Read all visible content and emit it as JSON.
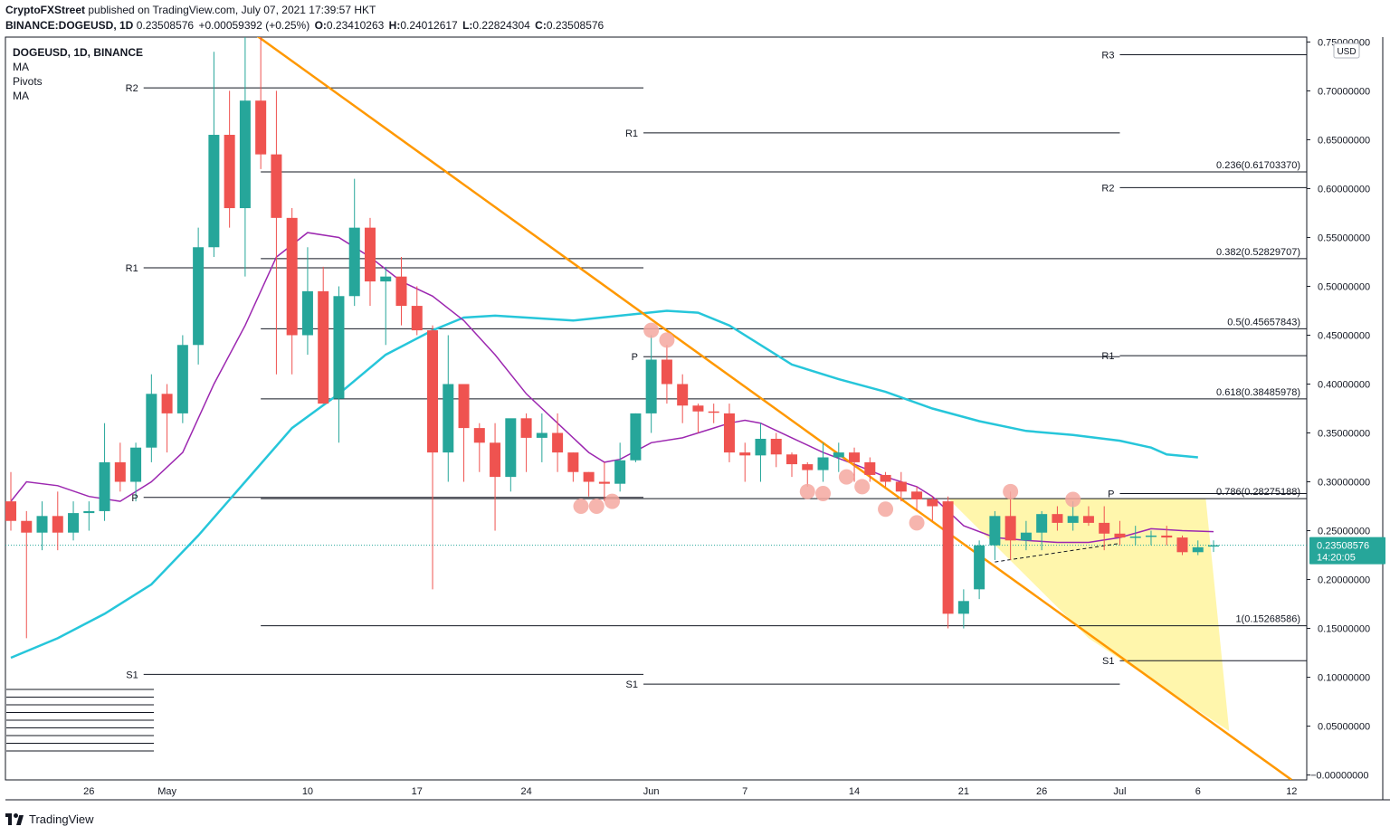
{
  "header": {
    "publisher": "CryptoFXStreet",
    "published_text": "published on TradingView.com, July 07, 2021 17:39:57 HKT",
    "symbol_line": "BINANCE:DOGEUSD, 1D",
    "price": "0.23508576",
    "change": "+0.00059392 (+0.25%)",
    "o_label": "O:",
    "o_value": "0.23410263",
    "h_label": "H:",
    "h_value": "0.24012617",
    "l_label": "L:",
    "l_value": "0.22824304",
    "c_label": "C:",
    "c_value": "0.23508576"
  },
  "legend": {
    "title": "DOGEUSD, 1D, BINANCE",
    "items": [
      "MA",
      "Pivots",
      "MA"
    ]
  },
  "footer": {
    "brand": "TradingView"
  },
  "colors": {
    "up": "#26a69a",
    "down": "#ef5350",
    "ma_fast": "#9c27b0",
    "ma_slow": "#26c6da",
    "trend": "#ff9800",
    "triangle": "#fff59d",
    "marker": "#f4a8a0",
    "price_tag": "#26a69a"
  },
  "chart_data": {
    "type": "candlestick",
    "title": "DOGEUSD, 1D, BINANCE",
    "y_unit": "USD",
    "ylim": [
      -0.005,
      0.755
    ],
    "x_ticks": [
      {
        "label": "26",
        "day": 5
      },
      {
        "label": "May",
        "day": 10
      },
      {
        "label": "10",
        "day": 19
      },
      {
        "label": "17",
        "day": 26
      },
      {
        "label": "24",
        "day": 33
      },
      {
        "label": "Jun",
        "day": 41
      },
      {
        "label": "7",
        "day": 47
      },
      {
        "label": "14",
        "day": 54
      },
      {
        "label": "21",
        "day": 61
      },
      {
        "label": "26",
        "day": 66
      },
      {
        "label": "Jul",
        "day": 71
      },
      {
        "label": "6",
        "day": 76
      },
      {
        "label": "12",
        "day": 82
      }
    ],
    "y_ticks": [
      "0.75000000",
      "0.70000000",
      "0.65000000",
      "0.60000000",
      "0.55000000",
      "0.50000000",
      "0.45000000",
      "0.40000000",
      "0.35000000",
      "0.30000000",
      "0.25000000",
      "0.20000000",
      "0.15000000",
      "0.10000000",
      "0.05000000",
      "0.00000000"
    ],
    "y_tick_values": [
      0.75,
      0.7,
      0.65,
      0.6,
      0.55,
      0.5,
      0.45,
      0.4,
      0.35,
      0.3,
      0.25,
      0.2,
      0.15,
      0.1,
      0.05,
      0.0
    ],
    "y_tick_negative_sign": "−",
    "current_price": {
      "value": 0.23508576,
      "label": "0.23508576",
      "countdown": "14:20:05"
    },
    "candles": [
      {
        "d": 0,
        "o": 0.28,
        "h": 0.31,
        "l": 0.25,
        "c": 0.26
      },
      {
        "d": 1,
        "o": 0.26,
        "h": 0.27,
        "l": 0.14,
        "c": 0.248
      },
      {
        "d": 2,
        "o": 0.248,
        "h": 0.28,
        "l": 0.23,
        "c": 0.265
      },
      {
        "d": 3,
        "o": 0.265,
        "h": 0.29,
        "l": 0.23,
        "c": 0.248
      },
      {
        "d": 4,
        "o": 0.248,
        "h": 0.28,
        "l": 0.24,
        "c": 0.268
      },
      {
        "d": 5,
        "o": 0.268,
        "h": 0.28,
        "l": 0.25,
        "c": 0.27
      },
      {
        "d": 6,
        "o": 0.27,
        "h": 0.36,
        "l": 0.26,
        "c": 0.32
      },
      {
        "d": 7,
        "o": 0.32,
        "h": 0.34,
        "l": 0.29,
        "c": 0.3
      },
      {
        "d": 8,
        "o": 0.3,
        "h": 0.34,
        "l": 0.28,
        "c": 0.335
      },
      {
        "d": 9,
        "o": 0.335,
        "h": 0.41,
        "l": 0.32,
        "c": 0.39
      },
      {
        "d": 10,
        "o": 0.39,
        "h": 0.4,
        "l": 0.33,
        "c": 0.37
      },
      {
        "d": 11,
        "o": 0.37,
        "h": 0.45,
        "l": 0.36,
        "c": 0.44
      },
      {
        "d": 12,
        "o": 0.44,
        "h": 0.56,
        "l": 0.42,
        "c": 0.54
      },
      {
        "d": 13,
        "o": 0.54,
        "h": 0.74,
        "l": 0.53,
        "c": 0.655
      },
      {
        "d": 14,
        "o": 0.655,
        "h": 0.7,
        "l": 0.56,
        "c": 0.58
      },
      {
        "d": 15,
        "o": 0.58,
        "h": 0.76,
        "l": 0.51,
        "c": 0.69
      },
      {
        "d": 16,
        "o": 0.69,
        "h": 0.76,
        "l": 0.62,
        "c": 0.635
      },
      {
        "d": 17,
        "o": 0.635,
        "h": 0.7,
        "l": 0.41,
        "c": 0.57
      },
      {
        "d": 18,
        "o": 0.57,
        "h": 0.58,
        "l": 0.41,
        "c": 0.45
      },
      {
        "d": 19,
        "o": 0.45,
        "h": 0.54,
        "l": 0.43,
        "c": 0.495
      },
      {
        "d": 20,
        "o": 0.495,
        "h": 0.52,
        "l": 0.38,
        "c": 0.38
      },
      {
        "d": 21,
        "o": 0.385,
        "h": 0.5,
        "l": 0.34,
        "c": 0.49
      },
      {
        "d": 22,
        "o": 0.49,
        "h": 0.61,
        "l": 0.48,
        "c": 0.56
      },
      {
        "d": 23,
        "o": 0.56,
        "h": 0.57,
        "l": 0.48,
        "c": 0.505
      },
      {
        "d": 24,
        "o": 0.505,
        "h": 0.52,
        "l": 0.44,
        "c": 0.51
      },
      {
        "d": 25,
        "o": 0.51,
        "h": 0.53,
        "l": 0.46,
        "c": 0.48
      },
      {
        "d": 26,
        "o": 0.48,
        "h": 0.5,
        "l": 0.45,
        "c": 0.455
      },
      {
        "d": 27,
        "o": 0.455,
        "h": 0.46,
        "l": 0.19,
        "c": 0.33
      },
      {
        "d": 28,
        "o": 0.33,
        "h": 0.45,
        "l": 0.3,
        "c": 0.4
      },
      {
        "d": 29,
        "o": 0.4,
        "h": 0.4,
        "l": 0.3,
        "c": 0.355
      },
      {
        "d": 30,
        "o": 0.355,
        "h": 0.36,
        "l": 0.31,
        "c": 0.34
      },
      {
        "d": 31,
        "o": 0.34,
        "h": 0.36,
        "l": 0.25,
        "c": 0.305
      },
      {
        "d": 32,
        "o": 0.305,
        "h": 0.36,
        "l": 0.29,
        "c": 0.365
      },
      {
        "d": 33,
        "o": 0.365,
        "h": 0.37,
        "l": 0.31,
        "c": 0.345
      },
      {
        "d": 34,
        "o": 0.345,
        "h": 0.37,
        "l": 0.32,
        "c": 0.35
      },
      {
        "d": 35,
        "o": 0.35,
        "h": 0.37,
        "l": 0.31,
        "c": 0.33
      },
      {
        "d": 36,
        "o": 0.33,
        "h": 0.33,
        "l": 0.3,
        "c": 0.31
      },
      {
        "d": 37,
        "o": 0.31,
        "h": 0.31,
        "l": 0.285,
        "c": 0.3
      },
      {
        "d": 38,
        "o": 0.3,
        "h": 0.32,
        "l": 0.28,
        "c": 0.298
      },
      {
        "d": 39,
        "o": 0.298,
        "h": 0.34,
        "l": 0.29,
        "c": 0.322
      },
      {
        "d": 40,
        "o": 0.322,
        "h": 0.37,
        "l": 0.32,
        "c": 0.37
      },
      {
        "d": 41,
        "o": 0.37,
        "h": 0.45,
        "l": 0.35,
        "c": 0.425
      },
      {
        "d": 42,
        "o": 0.425,
        "h": 0.44,
        "l": 0.38,
        "c": 0.4
      },
      {
        "d": 43,
        "o": 0.4,
        "h": 0.41,
        "l": 0.36,
        "c": 0.378
      },
      {
        "d": 44,
        "o": 0.378,
        "h": 0.38,
        "l": 0.35,
        "c": 0.372
      },
      {
        "d": 45,
        "o": 0.372,
        "h": 0.38,
        "l": 0.36,
        "c": 0.371
      },
      {
        "d": 46,
        "o": 0.37,
        "h": 0.38,
        "l": 0.32,
        "c": 0.33
      },
      {
        "d": 47,
        "o": 0.33,
        "h": 0.34,
        "l": 0.3,
        "c": 0.327
      },
      {
        "d": 48,
        "o": 0.327,
        "h": 0.36,
        "l": 0.3,
        "c": 0.344
      },
      {
        "d": 49,
        "o": 0.344,
        "h": 0.35,
        "l": 0.315,
        "c": 0.328
      },
      {
        "d": 50,
        "o": 0.328,
        "h": 0.33,
        "l": 0.305,
        "c": 0.318
      },
      {
        "d": 51,
        "o": 0.318,
        "h": 0.32,
        "l": 0.295,
        "c": 0.312
      },
      {
        "d": 52,
        "o": 0.312,
        "h": 0.34,
        "l": 0.3,
        "c": 0.325
      },
      {
        "d": 53,
        "o": 0.325,
        "h": 0.34,
        "l": 0.31,
        "c": 0.33
      },
      {
        "d": 54,
        "o": 0.33,
        "h": 0.335,
        "l": 0.3,
        "c": 0.32
      },
      {
        "d": 55,
        "o": 0.32,
        "h": 0.325,
        "l": 0.3,
        "c": 0.307
      },
      {
        "d": 56,
        "o": 0.307,
        "h": 0.31,
        "l": 0.295,
        "c": 0.3
      },
      {
        "d": 57,
        "o": 0.3,
        "h": 0.31,
        "l": 0.28,
        "c": 0.29
      },
      {
        "d": 58,
        "o": 0.29,
        "h": 0.295,
        "l": 0.27,
        "c": 0.282
      },
      {
        "d": 59,
        "o": 0.282,
        "h": 0.285,
        "l": 0.26,
        "c": 0.275
      },
      {
        "d": 60,
        "o": 0.28,
        "h": 0.285,
        "l": 0.15,
        "c": 0.165
      },
      {
        "d": 61,
        "o": 0.165,
        "h": 0.19,
        "l": 0.15,
        "c": 0.178
      },
      {
        "d": 62,
        "o": 0.19,
        "h": 0.24,
        "l": 0.18,
        "c": 0.235
      },
      {
        "d": 63,
        "o": 0.235,
        "h": 0.27,
        "l": 0.22,
        "c": 0.265
      },
      {
        "d": 64,
        "o": 0.265,
        "h": 0.29,
        "l": 0.22,
        "c": 0.24
      },
      {
        "d": 65,
        "o": 0.24,
        "h": 0.26,
        "l": 0.23,
        "c": 0.248
      },
      {
        "d": 66,
        "o": 0.248,
        "h": 0.27,
        "l": 0.23,
        "c": 0.267
      },
      {
        "d": 67,
        "o": 0.267,
        "h": 0.275,
        "l": 0.25,
        "c": 0.258
      },
      {
        "d": 68,
        "o": 0.258,
        "h": 0.28,
        "l": 0.25,
        "c": 0.265
      },
      {
        "d": 69,
        "o": 0.265,
        "h": 0.275,
        "l": 0.255,
        "c": 0.258
      },
      {
        "d": 70,
        "o": 0.258,
        "h": 0.275,
        "l": 0.23,
        "c": 0.247
      },
      {
        "d": 71,
        "o": 0.247,
        "h": 0.26,
        "l": 0.235,
        "c": 0.243
      },
      {
        "d": 72,
        "o": 0.243,
        "h": 0.255,
        "l": 0.235,
        "c": 0.244
      },
      {
        "d": 73,
        "o": 0.244,
        "h": 0.25,
        "l": 0.235,
        "c": 0.245
      },
      {
        "d": 74,
        "o": 0.245,
        "h": 0.255,
        "l": 0.235,
        "c": 0.243
      },
      {
        "d": 75,
        "o": 0.243,
        "h": 0.245,
        "l": 0.225,
        "c": 0.228
      },
      {
        "d": 76,
        "o": 0.228,
        "h": 0.24,
        "l": 0.225,
        "c": 0.233
      },
      {
        "d": 77,
        "o": 0.2341,
        "h": 0.2401,
        "l": 0.2282,
        "c": 0.2351
      }
    ],
    "ma_fast": [
      [
        0,
        0.28
      ],
      [
        1,
        0.3
      ],
      [
        3,
        0.296
      ],
      [
        5,
        0.285
      ],
      [
        7,
        0.28
      ],
      [
        9,
        0.3
      ],
      [
        11,
        0.33
      ],
      [
        13,
        0.4
      ],
      [
        15,
        0.46
      ],
      [
        17,
        0.53
      ],
      [
        19,
        0.555
      ],
      [
        21,
        0.55
      ],
      [
        23,
        0.53
      ],
      [
        25,
        0.505
      ],
      [
        27,
        0.49
      ],
      [
        29,
        0.465
      ],
      [
        31,
        0.43
      ],
      [
        33,
        0.39
      ],
      [
        35,
        0.36
      ],
      [
        37,
        0.33
      ],
      [
        38,
        0.32
      ],
      [
        39,
        0.323
      ],
      [
        41,
        0.34
      ],
      [
        43,
        0.345
      ],
      [
        45,
        0.355
      ],
      [
        46,
        0.36
      ],
      [
        47,
        0.363
      ],
      [
        48,
        0.36
      ],
      [
        50,
        0.345
      ],
      [
        52,
        0.33
      ],
      [
        54,
        0.318
      ],
      [
        56,
        0.305
      ],
      [
        58,
        0.295
      ],
      [
        59,
        0.285
      ],
      [
        60,
        0.27
      ],
      [
        61,
        0.255
      ],
      [
        63,
        0.243
      ],
      [
        65,
        0.24
      ],
      [
        67,
        0.238
      ],
      [
        69,
        0.238
      ],
      [
        71,
        0.243
      ],
      [
        73,
        0.252
      ],
      [
        75,
        0.25
      ],
      [
        77,
        0.249
      ]
    ],
    "ma_slow": [
      [
        0,
        0.12
      ],
      [
        3,
        0.14
      ],
      [
        6,
        0.165
      ],
      [
        9,
        0.195
      ],
      [
        12,
        0.245
      ],
      [
        15,
        0.3
      ],
      [
        18,
        0.355
      ],
      [
        21,
        0.39
      ],
      [
        24,
        0.43
      ],
      [
        27,
        0.455
      ],
      [
        29,
        0.468
      ],
      [
        31,
        0.47
      ],
      [
        33,
        0.468
      ],
      [
        36,
        0.465
      ],
      [
        39,
        0.47
      ],
      [
        42,
        0.475
      ],
      [
        44,
        0.473
      ],
      [
        46,
        0.46
      ],
      [
        48,
        0.44
      ],
      [
        50,
        0.42
      ],
      [
        53,
        0.405
      ],
      [
        56,
        0.392
      ],
      [
        59,
        0.375
      ],
      [
        62,
        0.362
      ],
      [
        65,
        0.352
      ],
      [
        68,
        0.348
      ],
      [
        71,
        0.342
      ],
      [
        73,
        0.335
      ],
      [
        74,
        0.328
      ],
      [
        76,
        0.325
      ]
    ],
    "trendline": {
      "p1": [
        15,
        0.765
      ],
      "p2": [
        82,
        -0.005
      ]
    },
    "dashed_line": {
      "p1": [
        63,
        0.218
      ],
      "p2": [
        71,
        0.237
      ]
    },
    "triangle": [
      [
        60,
        0.283
      ],
      [
        76.5,
        0.283
      ],
      [
        78,
        0.045
      ],
      [
        69,
        0.14
      ]
    ],
    "markers": [
      [
        36.5,
        0.275
      ],
      [
        37.5,
        0.275
      ],
      [
        38.5,
        0.28
      ],
      [
        41,
        0.455
      ],
      [
        42,
        0.445
      ],
      [
        51,
        0.29
      ],
      [
        52,
        0.288
      ],
      [
        53.5,
        0.305
      ],
      [
        54.5,
        0.295
      ],
      [
        56,
        0.272
      ],
      [
        58,
        0.258
      ],
      [
        64,
        0.29
      ],
      [
        68,
        0.282
      ]
    ],
    "pivot_lines": [
      {
        "label": "R2",
        "y": 0.703,
        "from": 8.5,
        "to": 40.5,
        "label_side": "left"
      },
      {
        "label": "R1",
        "y": 0.519,
        "from": 8.5,
        "to": 40.5,
        "label_side": "left"
      },
      {
        "label": "P",
        "y": 0.284,
        "from": 8.5,
        "to": 40.5,
        "label_side": "left"
      },
      {
        "label": "S1",
        "y": 0.103,
        "from": 8.5,
        "to": 40.5,
        "label_side": "left"
      },
      {
        "label": "R1",
        "y": 0.657,
        "from": 40.5,
        "to": 71,
        "label_side": "left"
      },
      {
        "label": "P",
        "y": 0.428,
        "from": 40.5,
        "to": 71,
        "label_side": "left"
      },
      {
        "label": "S1",
        "y": 0.093,
        "from": 40.5,
        "to": 71,
        "label_side": "left"
      },
      {
        "label": "R3",
        "y": 0.737,
        "from": 71,
        "to": 83.3,
        "label_side": "left"
      },
      {
        "label": "R2",
        "y": 0.601,
        "from": 71,
        "to": 83.3,
        "label_side": "left"
      },
      {
        "label": "R1",
        "y": 0.429,
        "from": 71,
        "to": 83.3,
        "label_side": "left"
      },
      {
        "label": "P",
        "y": 0.288,
        "from": 71,
        "to": 83.3,
        "label_side": "left"
      },
      {
        "label": "S1",
        "y": 0.117,
        "from": 71,
        "to": 83.3,
        "label_side": "left"
      }
    ],
    "fib_levels": [
      {
        "label": "0.236(0.61703370)",
        "y": 0.6170337
      },
      {
        "label": "0.382(0.52829707)",
        "y": 0.52829707
      },
      {
        "label": "0.5(0.45657843)",
        "y": 0.45657843
      },
      {
        "label": "0.618(0.38485978)",
        "y": 0.38485978
      },
      {
        "label": "0.786(0.28275188)",
        "y": 0.28275188
      },
      {
        "label": "1(0.15268586)",
        "y": 0.15268586
      }
    ],
    "fib_from_day": 16
  }
}
